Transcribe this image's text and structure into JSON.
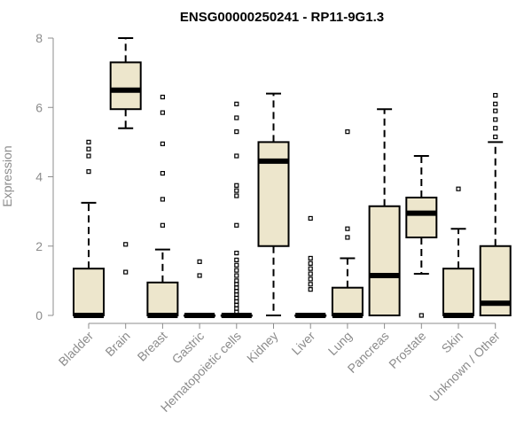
{
  "chart_data": {
    "type": "box",
    "title": "ENSG00000250241 - RP11-9G1.3",
    "xlabel": "",
    "ylabel": "Expression",
    "ylim": [
      0,
      8
    ],
    "yticks": [
      0,
      2,
      4,
      6,
      8
    ],
    "colors": {
      "box_fill": "#ede6cc",
      "stroke": "#000000",
      "tick_text": "#8c8c8c",
      "title": "#000000"
    },
    "categories": [
      "Bladder",
      "Brain",
      "Breast",
      "Gastric",
      "Hematopoietic cells",
      "Kidney",
      "Liver",
      "Lung",
      "Pancreas",
      "Prostate",
      "Skin",
      "Unknown / Other"
    ],
    "boxes": [
      {
        "category": "Bladder",
        "min": 0,
        "q1": 0,
        "median": 0,
        "q3": 1.35,
        "max": 3.25,
        "outliers": [
          4.15,
          4.6,
          4.8,
          5.0
        ]
      },
      {
        "category": "Brain",
        "min": 5.4,
        "q1": 5.95,
        "median": 6.5,
        "q3": 7.3,
        "max": 8.0,
        "outliers": [
          1.25,
          2.05
        ]
      },
      {
        "category": "Breast",
        "min": 0,
        "q1": 0,
        "median": 0,
        "q3": 0.95,
        "max": 1.9,
        "outliers": [
          2.6,
          3.35,
          4.1,
          4.95,
          5.85,
          6.3
        ]
      },
      {
        "category": "Gastric",
        "min": 0,
        "q1": 0,
        "median": 0,
        "q3": 0,
        "max": 0,
        "outliers": [
          1.15,
          1.55
        ]
      },
      {
        "category": "Hematopoietic cells",
        "min": 0,
        "q1": 0,
        "median": 0,
        "q3": 0,
        "max": 0,
        "outliers": [
          0.1,
          0.2,
          0.3,
          0.4,
          0.5,
          0.6,
          0.7,
          0.8,
          0.9,
          1.0,
          1.15,
          1.3,
          1.45,
          1.6,
          1.8,
          2.6,
          3.45,
          3.6,
          3.75,
          4.6,
          5.3,
          5.7,
          6.1
        ]
      },
      {
        "category": "Kidney",
        "min": 0,
        "q1": 2.0,
        "median": 4.45,
        "q3": 5.0,
        "max": 6.4,
        "outliers": []
      },
      {
        "category": "Liver",
        "min": 0,
        "q1": 0,
        "median": 0,
        "q3": 0,
        "max": 0,
        "outliers": [
          0.75,
          0.9,
          1.05,
          1.2,
          1.35,
          1.5,
          1.65,
          2.8
        ]
      },
      {
        "category": "Lung",
        "min": 0,
        "q1": 0,
        "median": 0,
        "q3": 0.8,
        "max": 1.65,
        "outliers": [
          2.25,
          2.5,
          5.3
        ]
      },
      {
        "category": "Pancreas",
        "min": 0,
        "q1": 0,
        "median": 1.15,
        "q3": 3.15,
        "max": 5.95,
        "outliers": []
      },
      {
        "category": "Prostate",
        "min": 1.2,
        "q1": 2.25,
        "median": 2.95,
        "q3": 3.4,
        "max": 4.6,
        "outliers": [
          0
        ]
      },
      {
        "category": "Skin",
        "min": 0,
        "q1": 0,
        "median": 0,
        "q3": 1.35,
        "max": 2.5,
        "outliers": [
          3.65
        ]
      },
      {
        "category": "Unknown / Other",
        "min": 0,
        "q1": 0,
        "median": 0.35,
        "q3": 2.0,
        "max": 5.0,
        "outliers": [
          5.15,
          5.4,
          5.65,
          5.9,
          6.1,
          6.35
        ]
      }
    ]
  }
}
